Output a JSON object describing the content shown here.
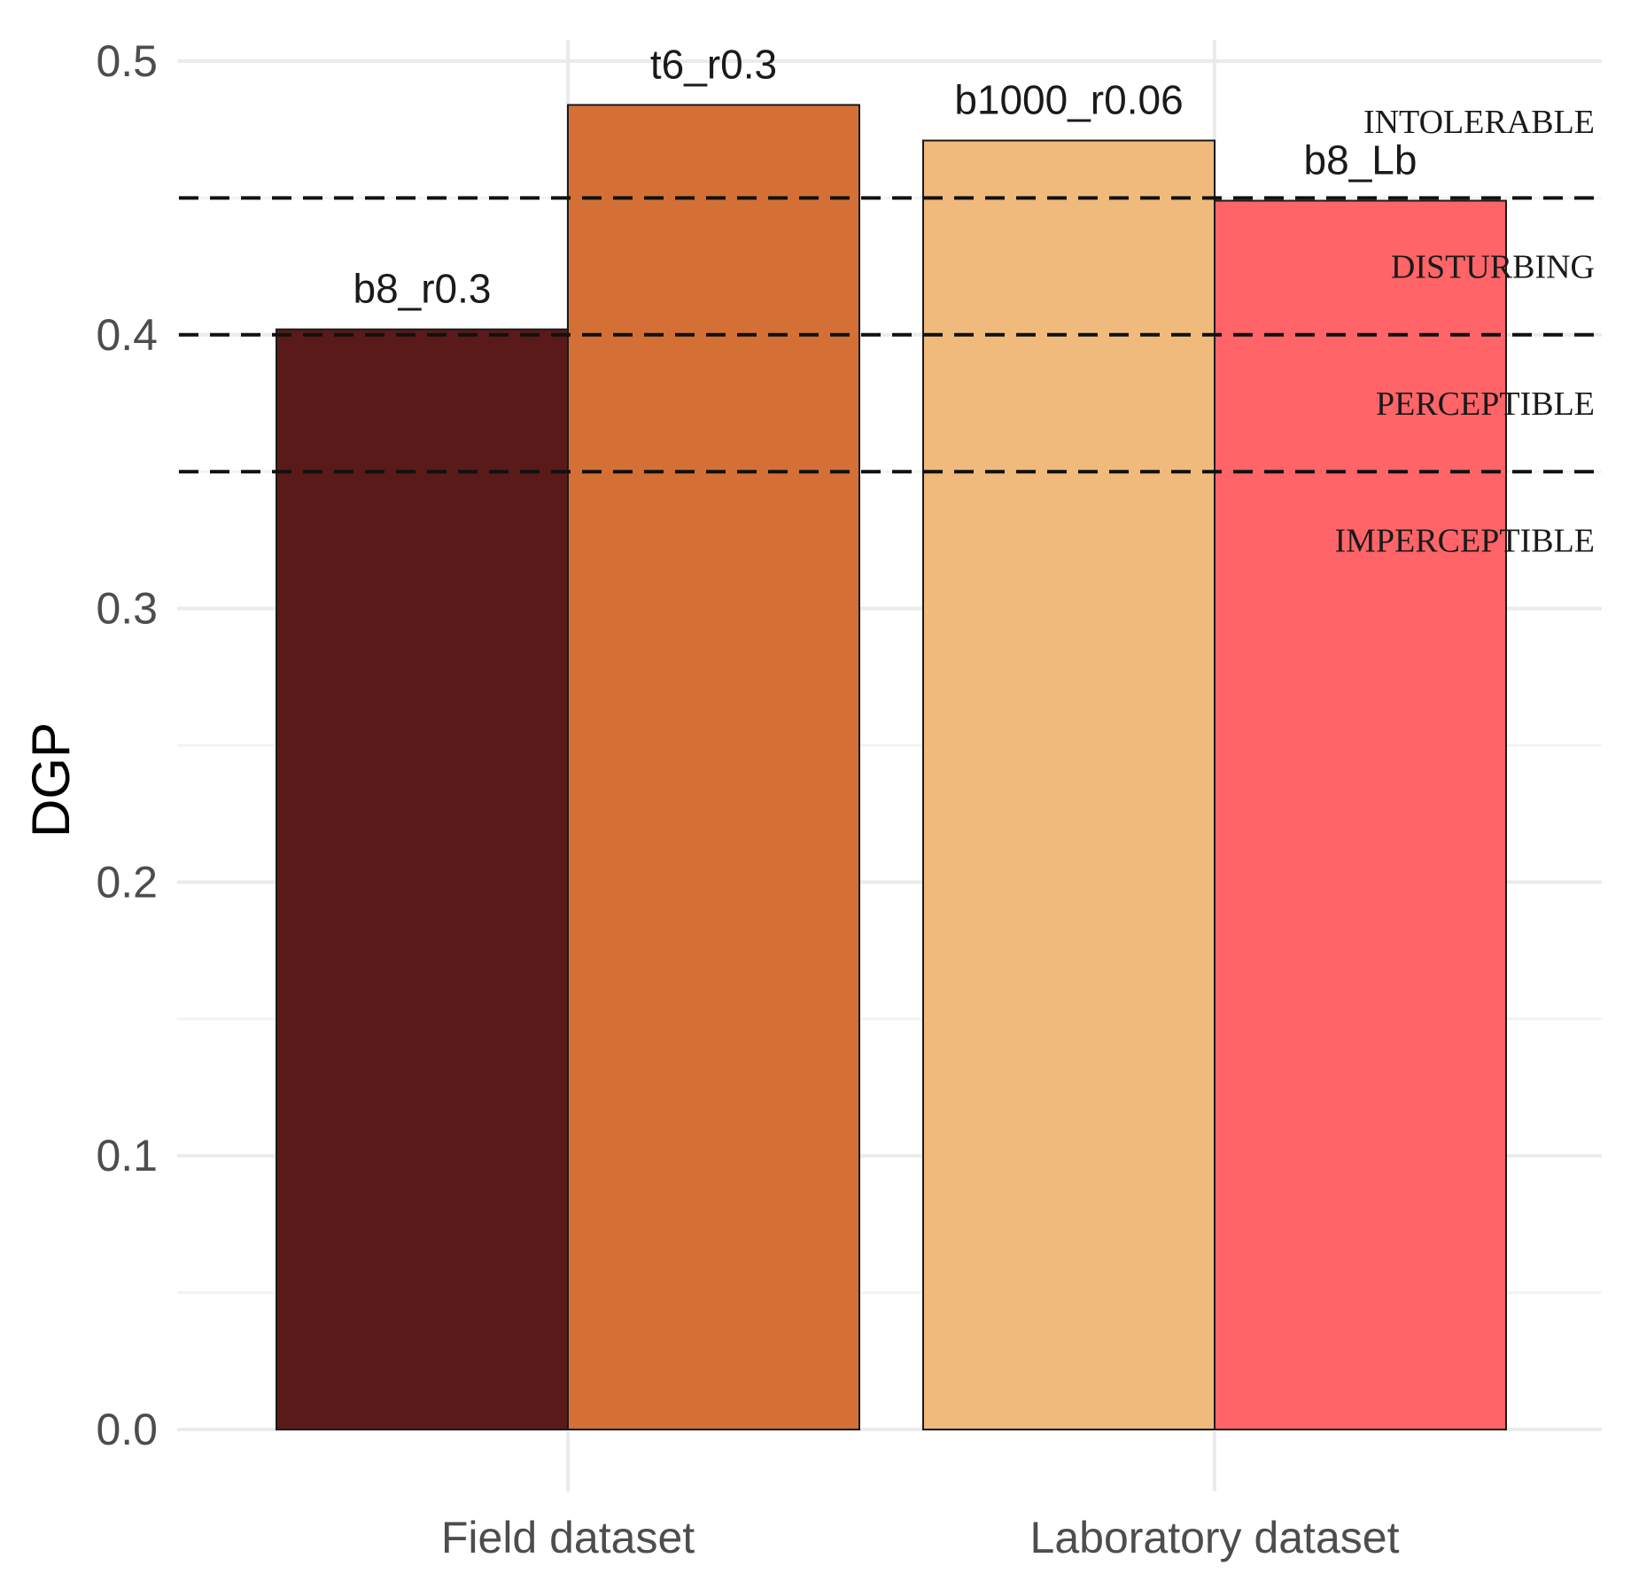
{
  "chart_data": {
    "type": "bar",
    "title": "",
    "xlabel": "",
    "ylabel": "DGP",
    "ylim": [
      0.0,
      0.5
    ],
    "y_ticks": [
      "0.0",
      "0.1",
      "0.2",
      "0.3",
      "0.4",
      "0.5"
    ],
    "y_tick_values": [
      0.0,
      0.1,
      0.2,
      0.3,
      0.4,
      0.5
    ],
    "grid": true,
    "legend": "none",
    "categories": [
      "Field dataset",
      "Laboratory dataset"
    ],
    "bars": [
      {
        "category": "Field dataset",
        "label": "b8_r0.3",
        "value": 0.402,
        "color": "#5A1A19"
      },
      {
        "category": "Field dataset",
        "label": "t6_r0.3",
        "value": 0.484,
        "color": "#D47036"
      },
      {
        "category": "Laboratory dataset",
        "label": "b1000_r0.06",
        "value": 0.471,
        "color": "#F0BA7C"
      },
      {
        "category": "Laboratory dataset",
        "label": "b8_Lb",
        "value": 0.449,
        "color": "#FF6468"
      }
    ],
    "thresholds": [
      {
        "value": 0.45,
        "style": "dashed"
      },
      {
        "value": 0.4,
        "style": "dashed"
      },
      {
        "value": 0.35,
        "style": "dashed"
      }
    ],
    "zone_labels": [
      {
        "text": "INTOLERABLE",
        "value": 0.478
      },
      {
        "text": "DISTURBING",
        "value": 0.425
      },
      {
        "text": "PERCEPTIBLE",
        "value": 0.375
      },
      {
        "text": "IMPERCEPTIBLE",
        "value": 0.325
      }
    ]
  }
}
